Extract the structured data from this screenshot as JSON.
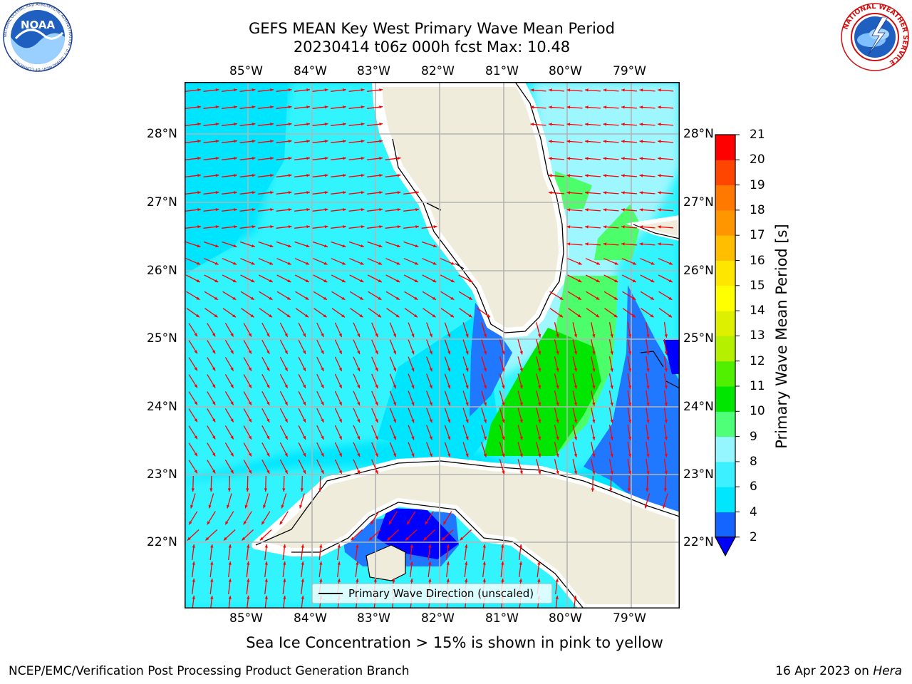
{
  "header": {
    "title_line1": "GEFS MEAN Key West Primary Wave Mean Period",
    "title_line2": "20230414 t06z 000h fcst   Max: 10.48"
  },
  "logos": {
    "left": {
      "text": "NOAA",
      "ring_text": "NATIONAL OCEANIC AND ATMOSPHERIC ADMINISTRATION · U.S. DEPARTMENT OF COMMERCE"
    },
    "right": {
      "ring_text": "NATIONAL WEATHER SERVICE"
    }
  },
  "map": {
    "lon_labels": [
      "85°W",
      "84°W",
      "83°W",
      "82°W",
      "81°W",
      "80°W",
      "79°W"
    ],
    "lat_labels": [
      "28°N",
      "27°N",
      "26°N",
      "25°N",
      "24°N",
      "23°N",
      "22°N"
    ],
    "colors": {
      "land": "#efecdc",
      "coast": "#000000",
      "grid": "#b4b4b4",
      "arrow": "#ff0000",
      "band_2_4": "#1f78ff",
      "band_lt2": "#0000ff",
      "band_4_6": "#00e5ff",
      "band_6_8": "#33f4ff",
      "band_8_9": "#9ef6ff",
      "band_9_10": "#4cff6a",
      "band_10_11": "#00e600"
    },
    "legend": {
      "label": "Primary Wave Direction (unscaled)"
    }
  },
  "colorbar": {
    "label": "Primary Wave Mean Period [s]",
    "ticks": [
      "2",
      "4",
      "6",
      "8",
      "9",
      "10",
      "11",
      "12",
      "13",
      "14",
      "15",
      "16",
      "17",
      "18",
      "19",
      "20",
      "21"
    ],
    "colors": [
      "#1464ff",
      "#00e6ff",
      "#3cf0ff",
      "#96f6ff",
      "#50ff78",
      "#00e600",
      "#50f000",
      "#b4f000",
      "#dcf000",
      "#ffff00",
      "#ffe600",
      "#ffbe00",
      "#ff9600",
      "#ff7800",
      "#ff4600",
      "#ff0000"
    ]
  },
  "notes": {
    "sea_ice": "Sea Ice Concentration > 15% is shown in pink to yellow"
  },
  "footer": {
    "left": "NCEP/EMC/Verification Post Processing Product Generation Branch",
    "date": "16 Apr 2023 on",
    "host": "Hera"
  }
}
